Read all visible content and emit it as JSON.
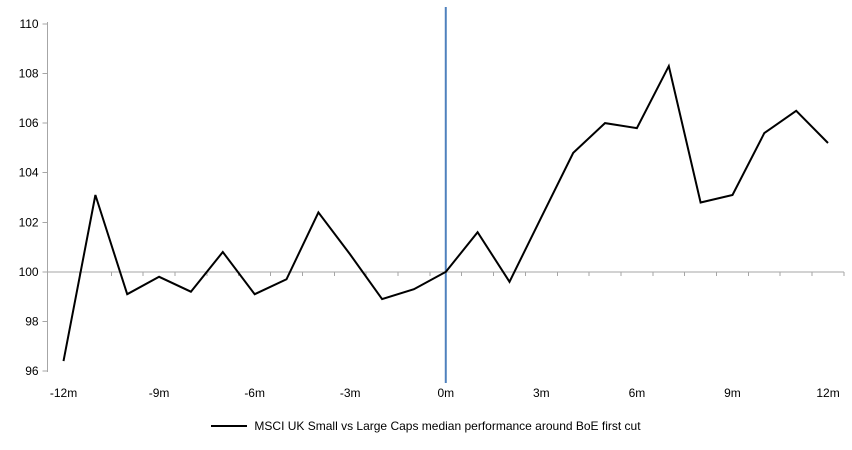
{
  "chart_data": {
    "type": "line",
    "title": "",
    "x": [
      -12,
      -11,
      -10,
      -9,
      -8,
      -7,
      -6,
      -5,
      -4,
      -3,
      -2,
      -1,
      0,
      1,
      2,
      3,
      4,
      5,
      6,
      7,
      8,
      9,
      10,
      11,
      12
    ],
    "series": [
      {
        "name": "MSCI UK Small vs Large Caps median performance around BoE first cut",
        "color": "#000000",
        "values": [
          96.4,
          103.1,
          99.1,
          99.8,
          99.2,
          100.8,
          99.1,
          99.7,
          102.4,
          100.7,
          98.9,
          99.3,
          100.0,
          101.6,
          99.6,
          102.2,
          104.8,
          106.0,
          105.8,
          108.3,
          102.8,
          103.1,
          105.6,
          106.5,
          105.2
        ]
      }
    ],
    "x_ticks": [
      -12,
      -9,
      -6,
      -3,
      0,
      3,
      6,
      9,
      12
    ],
    "x_tick_labels": [
      "-12m",
      "-9m",
      "-6m",
      "-3m",
      "0m",
      "3m",
      "6m",
      "9m",
      "12m"
    ],
    "y_ticks": [
      96,
      98,
      100,
      102,
      104,
      106,
      108,
      110
    ],
    "y_tick_labels": [
      "96",
      "98",
      "100",
      "102",
      "104",
      "106",
      "108",
      "110"
    ],
    "ylim": [
      96,
      110
    ],
    "xlim_months": [
      -12,
      12
    ],
    "baseline_value": 100,
    "event_line": {
      "at_x": 0,
      "color": "#4f81bd"
    },
    "colors": {
      "axis": "#a6a6a6",
      "tick": "#a6a6a6",
      "label": "#000000",
      "series": "#000000"
    },
    "grid": "off",
    "legend_position": "bottom-center"
  },
  "legend": {
    "label": "MSCI UK Small vs Large Caps median performance around BoE first cut"
  }
}
